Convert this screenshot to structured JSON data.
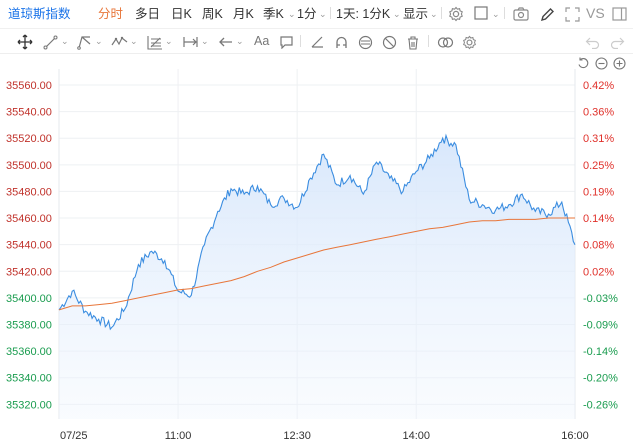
{
  "toolbar": {
    "symbol": "道琼斯指数",
    "periods": [
      "分时",
      "多日",
      "日K",
      "周K",
      "月K",
      "季K"
    ],
    "active_period": "分时",
    "interval": "1分",
    "range": "1天: 1分K",
    "display": "显示",
    "vs": "VS"
  },
  "drawing_tools": {
    "text_tool": "Aa"
  },
  "colors": {
    "accent": "#1a73e8",
    "up": "#e0312b",
    "down": "#1a9c4f",
    "price_line": "#3b8de0",
    "avg_line": "#e8763a",
    "fill_top": "#dbe9fb"
  },
  "chart_data": {
    "type": "area",
    "title": "",
    "y_left_ticks": [
      "35560.00",
      "35540.00",
      "35520.00",
      "35500.00",
      "35480.00",
      "35460.00",
      "35440.00",
      "35420.00",
      "35400.00",
      "35380.00",
      "35360.00",
      "35340.00",
      "35320.00"
    ],
    "y_right_ticks": [
      "0.42%",
      "0.36%",
      "0.31%",
      "0.25%",
      "0.19%",
      "0.14%",
      "0.08%",
      "0.02%",
      "-0.03%",
      "-0.09%",
      "-0.14%",
      "-0.20%",
      "-0.26%"
    ],
    "x_ticks": [
      "07/25",
      "11:00",
      "12:30",
      "14:00",
      "16:00"
    ],
    "ylim": [
      35309,
      35572
    ],
    "prev_close": 35410,
    "x": [
      "09:30",
      "09:40",
      "09:50",
      "10:00",
      "10:10",
      "10:20",
      "10:30",
      "10:40",
      "10:50",
      "11:00",
      "11:10",
      "11:20",
      "11:30",
      "11:40",
      "11:50",
      "12:00",
      "12:10",
      "12:20",
      "12:30",
      "12:40",
      "12:50",
      "13:00",
      "13:10",
      "13:20",
      "13:30",
      "13:40",
      "13:50",
      "14:00",
      "14:10",
      "14:20",
      "14:30",
      "14:40",
      "14:50",
      "15:00",
      "15:10",
      "15:20",
      "15:30",
      "15:40",
      "15:50",
      "16:00"
    ],
    "series": [
      {
        "values": [
          35391,
          35405,
          35390,
          35384,
          35378,
          35392,
          35425,
          35435,
          35428,
          35405,
          35402,
          35440,
          35465,
          35482,
          35478,
          35484,
          35470,
          35475,
          35468,
          35490,
          35508,
          35485,
          35492,
          35478,
          35502,
          35490,
          35480,
          35495,
          35505,
          35520,
          35515,
          35474,
          35470,
          35466,
          35470,
          35478,
          35465,
          35463,
          35472,
          35440
        ]
      },
      {
        "values": [
          35391,
          35394,
          35394,
          35395,
          35396,
          35398,
          35400,
          35402,
          35404,
          35406,
          35407,
          35409,
          35411,
          35413,
          35416,
          35420,
          35423,
          35427,
          35430,
          35433,
          35436,
          35438,
          35440,
          35442,
          35444,
          35446,
          35448,
          35450,
          35452,
          35453,
          35455,
          35457,
          35458,
          35458,
          35459,
          35459,
          35459,
          35460,
          35460,
          35460
        ]
      }
    ]
  }
}
